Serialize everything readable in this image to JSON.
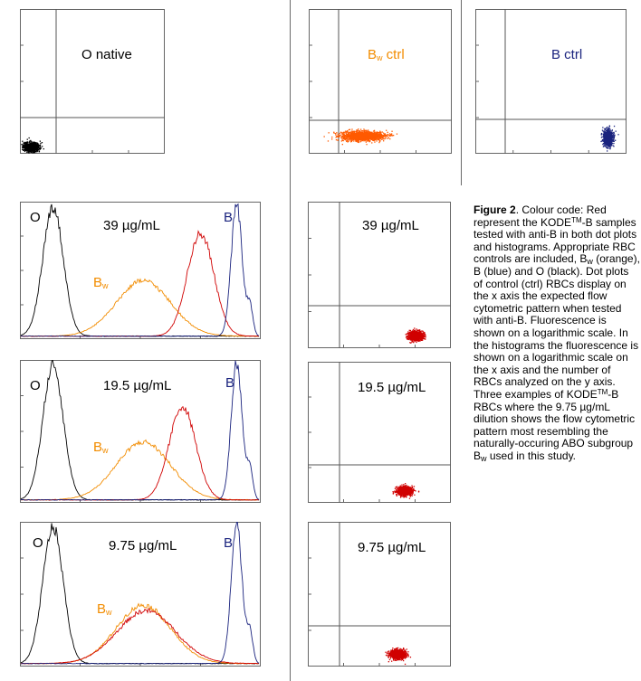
{
  "chart_data": [
    {
      "id": "dot_o_native",
      "type": "scatter",
      "title": "O native",
      "color": "#000000",
      "gates": {
        "x": "10^1",
        "y": "10^1"
      },
      "population": {
        "x_center": "10^0.3",
        "y_center": "10^0.2"
      },
      "xscale": "log",
      "yscale": "log",
      "xlim": [
        "10^0",
        "10^4"
      ],
      "ylim": [
        "10^0",
        "10^4"
      ]
    },
    {
      "id": "dot_bw_ctrl",
      "type": "scatter",
      "title": "Bw ctrl",
      "title_main": "B",
      "title_sub": "w",
      "title_rest": " ctrl",
      "color": "#ff5a00",
      "gates": {
        "x": "10^1",
        "y": "10^1"
      },
      "population": {
        "x_center": "10^1.5",
        "y_center": "10^0.5"
      },
      "xscale": "log",
      "yscale": "log",
      "xlim": [
        "10^0",
        "10^4"
      ],
      "ylim": [
        "10^0",
        "10^4"
      ]
    },
    {
      "id": "dot_b_ctrl",
      "type": "scatter",
      "title": "B ctrl",
      "color": "#1a237e",
      "gates": {
        "x": "10^1",
        "y": "10^1"
      },
      "population": {
        "x_center": "10^3.5",
        "y_center": "10^0.45"
      },
      "xscale": "log",
      "yscale": "log",
      "xlim": [
        "10^0",
        "10^4"
      ],
      "ylim": [
        "10^0",
        "10^4"
      ]
    },
    {
      "id": "hist_39",
      "type": "line",
      "label": "39 µg/mL",
      "xscale": "log",
      "xlim": [
        "10^0",
        "10^4"
      ],
      "series": [
        {
          "name": "O",
          "color": "#000000",
          "peak_log_x": 0.55,
          "peak_rel": 0.98
        },
        {
          "name": "Bw",
          "color": "#f28c00",
          "peak_log_x": 2.05,
          "peak_rel": 0.42
        },
        {
          "name": "KODE-B",
          "color": "#d00000",
          "peak_log_x": 3.0,
          "peak_rel": 0.78
        },
        {
          "name": "B",
          "color": "#1a237e",
          "peak_log_x": 3.6,
          "peak_rel": 1.0
        }
      ],
      "annotations": [
        "O",
        "Bw",
        "B"
      ]
    },
    {
      "id": "hist_19_5",
      "type": "line",
      "label": "19.5 µg/mL",
      "xscale": "log",
      "xlim": [
        "10^0",
        "10^4"
      ],
      "series": [
        {
          "name": "O",
          "color": "#000000",
          "peak_log_x": 0.55,
          "peak_rel": 0.98
        },
        {
          "name": "Bw",
          "color": "#f28c00",
          "peak_log_x": 2.05,
          "peak_rel": 0.42
        },
        {
          "name": "KODE-B",
          "color": "#d00000",
          "peak_log_x": 2.7,
          "peak_rel": 0.68
        },
        {
          "name": "B",
          "color": "#1a237e",
          "peak_log_x": 3.6,
          "peak_rel": 1.0
        }
      ],
      "annotations": [
        "O",
        "Bw",
        "B"
      ]
    },
    {
      "id": "hist_9_75",
      "type": "line",
      "label": "9.75 µg/mL",
      "xscale": "log",
      "xlim": [
        "10^0",
        "10^4"
      ],
      "series": [
        {
          "name": "O",
          "color": "#000000",
          "peak_log_x": 0.55,
          "peak_rel": 0.98
        },
        {
          "name": "Bw",
          "color": "#f28c00",
          "peak_log_x": 2.05,
          "peak_rel": 0.42
        },
        {
          "name": "KODE-B",
          "color": "#d00000",
          "peak_log_x": 2.1,
          "peak_rel": 0.38
        },
        {
          "name": "B",
          "color": "#1a237e",
          "peak_log_x": 3.6,
          "peak_rel": 1.0
        }
      ],
      "annotations": [
        "O",
        "Bw",
        "B"
      ]
    },
    {
      "id": "dot_39",
      "type": "scatter",
      "title": "39 µg/mL",
      "color": "#d00000",
      "gates": {
        "x": "10^1",
        "y": "10^1"
      },
      "population": {
        "x_center": "10^3.0",
        "y_center": "10^0.35"
      },
      "xscale": "log",
      "yscale": "log",
      "xlim": [
        "10^0",
        "10^4"
      ],
      "ylim": [
        "10^0",
        "10^4"
      ]
    },
    {
      "id": "dot_19_5",
      "type": "scatter",
      "title": "19.5 µg/mL",
      "color": "#d00000",
      "gates": {
        "x": "10^1",
        "y": "10^1"
      },
      "population": {
        "x_center": "10^2.7",
        "y_center": "10^0.35"
      },
      "xscale": "log",
      "yscale": "log",
      "xlim": [
        "10^0",
        "10^4"
      ],
      "ylim": [
        "10^0",
        "10^4"
      ]
    },
    {
      "id": "dot_9_75",
      "type": "scatter",
      "title": "9.75 µg/mL",
      "color": "#d00000",
      "gates": {
        "x": "10^1",
        "y": "10^1"
      },
      "population": {
        "x_center": "10^2.5",
        "y_center": "10^0.35"
      },
      "xscale": "log",
      "yscale": "log",
      "xlim": [
        "10^0",
        "10^4"
      ],
      "ylim": [
        "10^0",
        "10^4"
      ]
    }
  ],
  "panels": {
    "o_native": {
      "title": "O native"
    },
    "bw_ctrl": {
      "title_main": "B",
      "title_sub": "w",
      "title_rest": " ctrl"
    },
    "b_ctrl": {
      "title": "B ctrl"
    },
    "hist1": {
      "conc": "39 µg/mL",
      "o": "O",
      "b": "B",
      "bw_main": "B",
      "bw_sub": "w"
    },
    "hist2": {
      "conc": "19.5 µg/mL",
      "o": "O",
      "b": "B",
      "bw_main": "B",
      "bw_sub": "w"
    },
    "hist3": {
      "conc": "9.75 µg/mL",
      "o": "O",
      "b": "B",
      "bw_main": "B",
      "bw_sub": "w"
    },
    "dot1": {
      "conc": "39 µg/mL"
    },
    "dot2": {
      "conc": "19.5 µg/mL"
    },
    "dot3": {
      "conc": "9.75 µg/mL"
    }
  },
  "caption": {
    "title": "Figure 2",
    "p1": ". Colour code: Red represent the KODE",
    "tm1": "TM",
    "p2": "-B samples tested with anti-B in both dot plots and histograms. Appropriate RBC controls are included, B",
    "sub1": "w",
    "p3": " (orange), B (blue) and O (black). Dot plots of control (ctrl) RBCs display on the x axis the expected flow cytometric pattern when tested with anti-B. Fluorescence is shown on a logarithmic scale. In the histograms the fluorescence is shown on a logarithmic scale on the x axis and the number of RBCs analyzed on the y axis.",
    "p4": "Three examples of KODE",
    "tm2": "TM",
    "p5": "-B RBCs where the 9.75 µg/mL dilution shows the flow cytometric pattern most resembling the naturally-occuring ABO subgroup B",
    "sub2": "w",
    "p6": " used in this study."
  },
  "colors": {
    "black": "#000000",
    "orange": "#f28c00",
    "red": "#d00000",
    "blue": "#1a237e",
    "bw_dots": "#ff5a00",
    "frame": "#666666"
  }
}
